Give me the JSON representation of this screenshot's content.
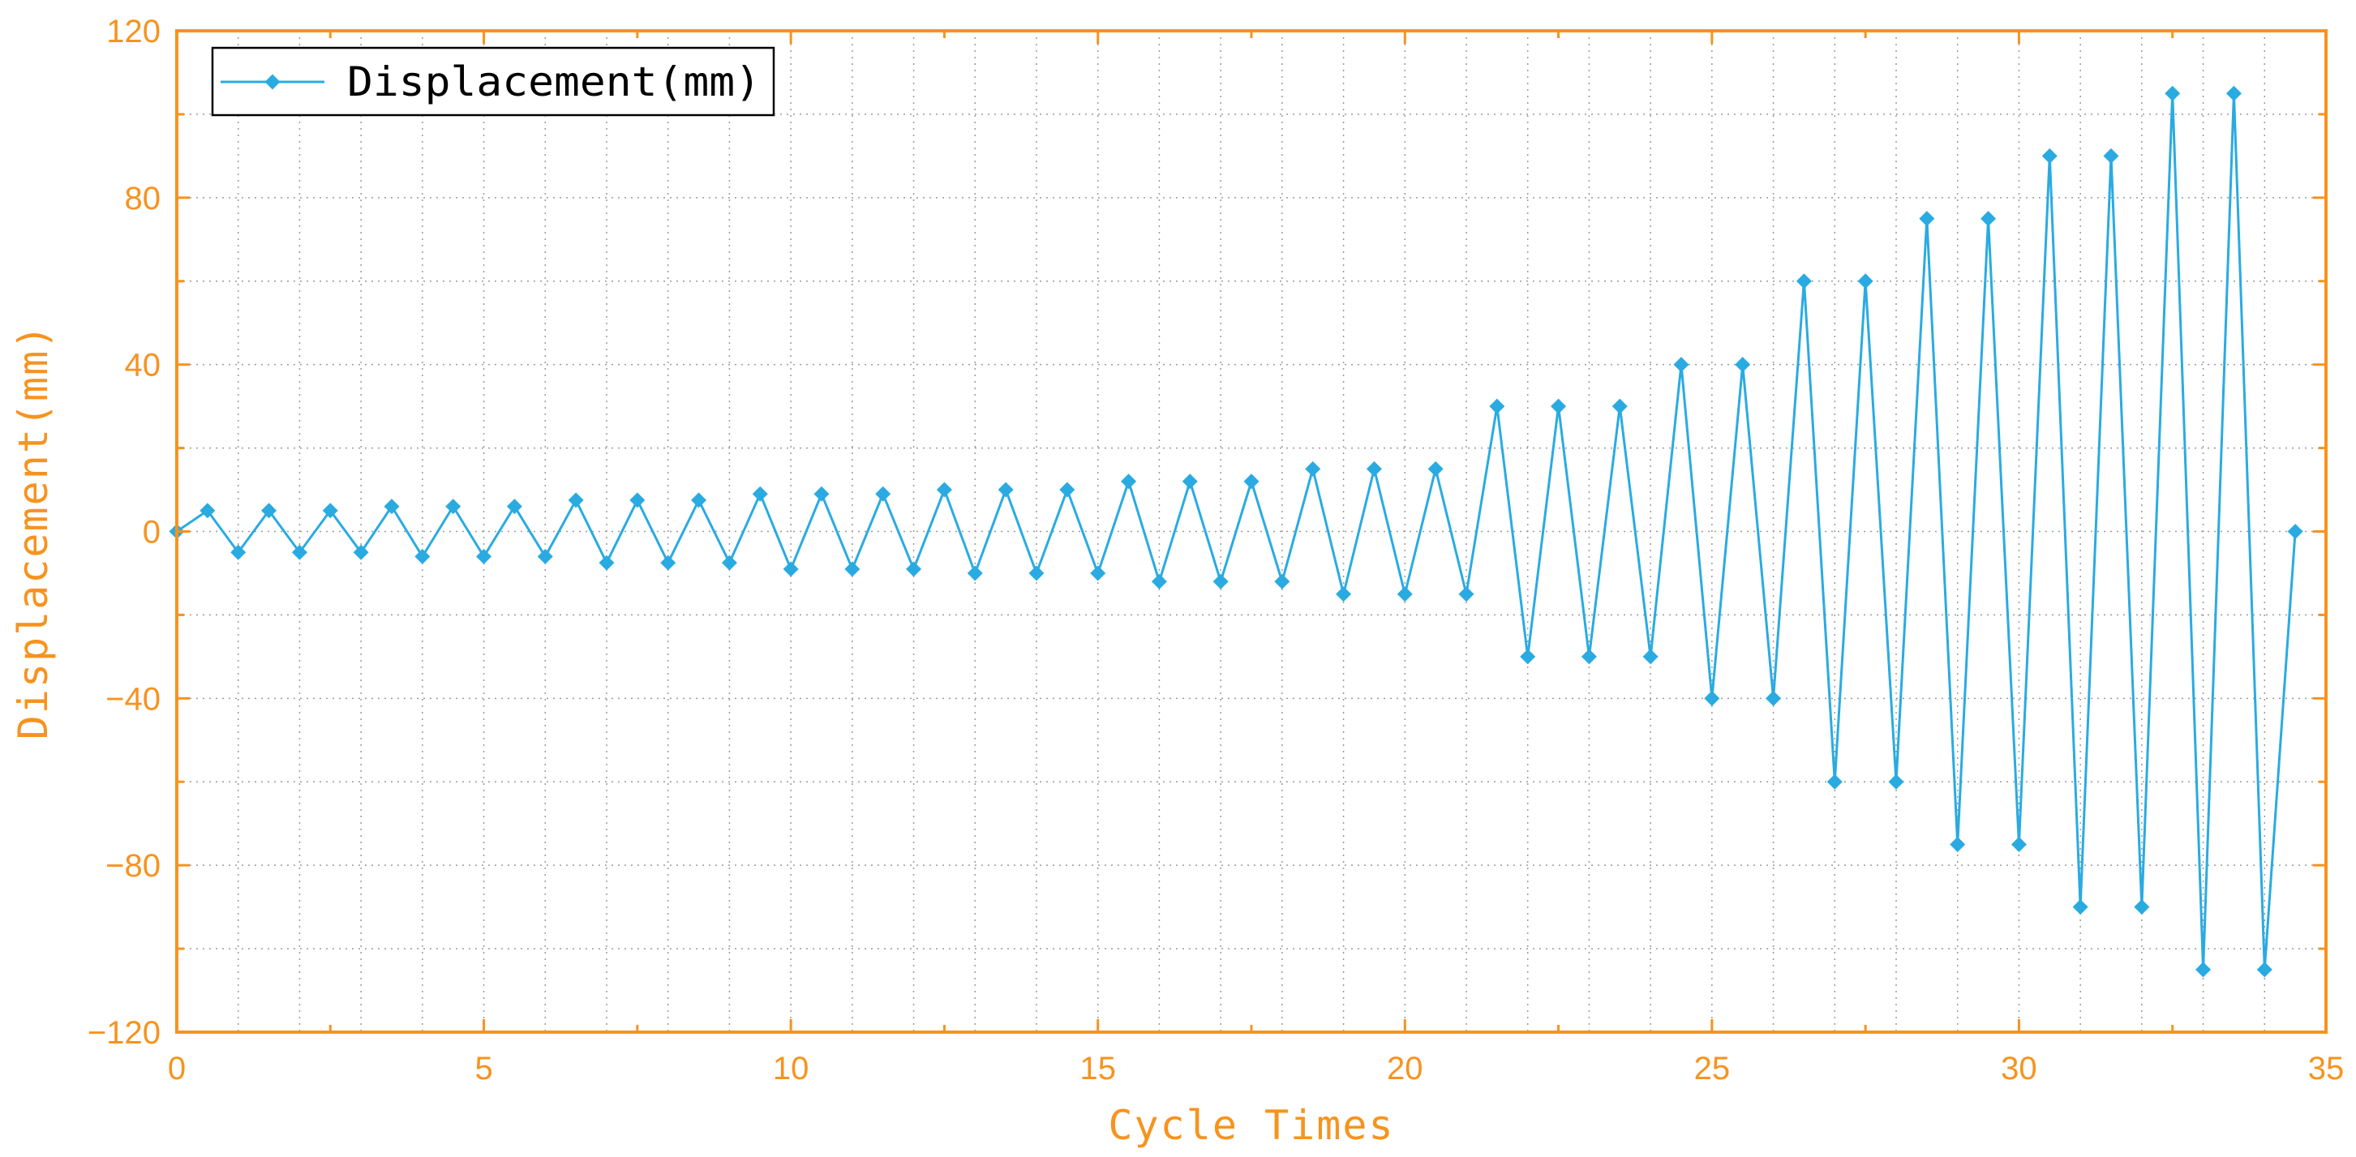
{
  "chart_data": {
    "type": "line",
    "xlabel": "Cycle Times",
    "ylabel": "Displacement(mm)",
    "xlim": [
      0,
      35
    ],
    "ylim": [
      -120,
      120
    ],
    "x_ticks": [
      0,
      5,
      10,
      15,
      20,
      25,
      30,
      35
    ],
    "y_ticks": [
      -120,
      -80,
      -40,
      0,
      40,
      80,
      120
    ],
    "x_tick_labels": [
      "0",
      "5",
      "10",
      "15",
      "20",
      "25",
      "30",
      "35"
    ],
    "y_tick_labels": [
      "−120",
      "−80",
      "−40",
      "0",
      "40",
      "80",
      "120"
    ],
    "grid": true,
    "legend_position": "top-left",
    "axis_color": "#F7931E",
    "series": [
      {
        "name": "Displacement(mm)",
        "color": "#29ABE2",
        "marker": "diamond",
        "x": [
          0,
          0.5,
          1,
          1.5,
          2,
          2.5,
          3,
          3.5,
          4,
          4.5,
          5,
          5.5,
          6,
          6.5,
          7,
          7.5,
          8,
          8.5,
          9,
          9.5,
          10,
          10.5,
          11,
          11.5,
          12,
          12.5,
          13,
          13.5,
          14,
          14.5,
          15,
          15.5,
          16,
          16.5,
          17,
          17.5,
          18,
          18.5,
          19,
          19.5,
          20,
          20.5,
          21,
          21.5,
          22,
          22.5,
          23,
          23.5,
          24,
          24.5,
          25,
          25.5,
          26,
          26.5,
          27,
          27.5,
          28,
          28.5,
          29,
          29.5,
          30,
          30.5,
          31,
          31.5,
          32,
          32.5,
          33,
          33.5,
          34,
          34.5
        ],
        "y": [
          0,
          5,
          -5,
          5,
          -5,
          5,
          -5,
          6,
          -6,
          6,
          -6,
          6,
          -6,
          7.5,
          -7.5,
          7.5,
          -7.5,
          7.5,
          -7.5,
          9,
          -9,
          9,
          -9,
          9,
          -9,
          10,
          -10,
          10,
          -10,
          10,
          -10,
          12,
          -12,
          12,
          -12,
          12,
          -12,
          15,
          -15,
          15,
          -15,
          15,
          -15,
          30,
          -30,
          30,
          -30,
          30,
          -30,
          40,
          -40,
          40,
          -40,
          60,
          -60,
          60,
          -60,
          75,
          -75,
          75,
          -75,
          90,
          -90,
          90,
          -90,
          105,
          -105,
          105,
          -105,
          0
        ]
      }
    ]
  }
}
